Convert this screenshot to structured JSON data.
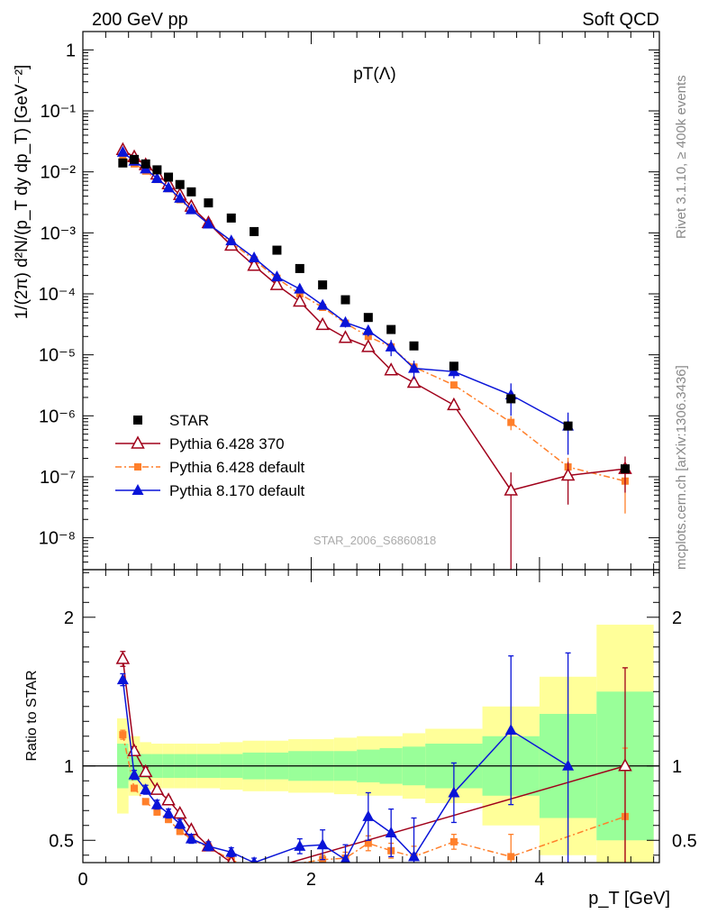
{
  "header": {
    "left": "200 GeV pp",
    "right": "Soft QCD",
    "side_top": "Rivet 3.1.10, ≥ 400k events",
    "side_bottom": "mcplots.cern.ch [arXiv:1306.3436]",
    "watermark": "STAR_2006_S6860818"
  },
  "colors": {
    "star": "#000000",
    "p6_370": "#a0001a",
    "p6_def": "#ff7f2a",
    "p8": "#0a14d8",
    "band_syst": "#ffff99",
    "band_stat": "#99ff99"
  },
  "chart_data": [
    {
      "type": "scatter",
      "title": "pT(Λ)",
      "xlabel": "p_T [GeV]",
      "ylabel": "1/(2π) d²N/(p_T dy dp_T) [GeV⁻²]",
      "x_range": [
        0,
        5.05
      ],
      "y_range": [
        3e-09,
        2
      ],
      "y_scale": "log",
      "y_ticks": [
        "10⁻⁸",
        "10⁻⁷",
        "10⁻⁶",
        "10⁻⁵",
        "10⁻⁴",
        "10⁻³",
        "10⁻²",
        "10⁻¹",
        "1"
      ],
      "legend_position": "bottom-left",
      "series": [
        {
          "name": "STAR",
          "marker": "filled-square",
          "x": [
            0.35,
            0.45,
            0.55,
            0.65,
            0.75,
            0.85,
            0.95,
            1.1,
            1.3,
            1.5,
            1.7,
            1.9,
            2.1,
            2.3,
            2.5,
            2.7,
            2.9,
            3.25,
            3.75,
            4.25,
            4.75
          ],
          "y": [
            0.014,
            0.016,
            0.0135,
            0.0108,
            0.0082,
            0.0062,
            0.0047,
            0.0031,
            0.00175,
            0.00105,
            0.00052,
            0.00026,
            0.00014,
            8e-05,
            4.1e-05,
            2.6e-05,
            1.4e-05,
            6.5e-06,
            1.9e-06,
            6.8e-07,
            1.35e-07
          ]
        },
        {
          "name": "Pythia 6.428 370",
          "marker": "open-triangle",
          "x": [
            0.35,
            0.45,
            0.55,
            0.65,
            0.75,
            0.85,
            0.95,
            1.1,
            1.3,
            1.5,
            1.7,
            1.9,
            2.1,
            2.3,
            2.5,
            2.7,
            2.9,
            3.25,
            3.75,
            4.25,
            4.75
          ],
          "y": [
            0.023,
            0.0175,
            0.013,
            0.0091,
            0.0063,
            0.0042,
            0.0027,
            0.00145,
            0.00062,
            0.00029,
            0.00014,
            7.5e-05,
            3.1e-05,
            1.9e-05,
            1.35e-05,
            5.6e-06,
            3.5e-06,
            1.5e-06,
            6e-08,
            1.05e-07,
            1.35e-07
          ],
          "yerr": [
            0,
            0,
            0,
            0,
            0,
            0,
            0,
            0,
            0,
            0,
            0,
            0,
            0,
            0,
            0,
            0,
            0,
            0,
            5.8e-08,
            7e-08,
            8e-08
          ]
        },
        {
          "name": "Pythia 6.428 default",
          "marker": "filled-small-square",
          "x": [
            0.35,
            0.45,
            0.55,
            0.65,
            0.75,
            0.85,
            0.95,
            1.1,
            1.3,
            1.5,
            1.7,
            1.9,
            2.1,
            2.3,
            2.5,
            2.7,
            2.9,
            3.25,
            3.75,
            4.25,
            4.75
          ],
          "y": [
            0.017,
            0.0135,
            0.0103,
            0.0075,
            0.0053,
            0.0035,
            0.0024,
            0.0014,
            0.0007,
            0.00036,
            0.00018,
            0.0001,
            6e-05,
            3.3e-05,
            2e-05,
            1.35e-05,
            6.3e-06,
            3.2e-06,
            7.8e-07,
            1.45e-07,
            8.5e-08
          ],
          "yerr": [
            0,
            0,
            0,
            0,
            0,
            0,
            0,
            0,
            0,
            0,
            0,
            0,
            0,
            0,
            0,
            0,
            0,
            3e-07,
            2e-07,
            6e-08,
            6e-08
          ]
        },
        {
          "name": "Pythia 8.170 default",
          "marker": "filled-triangle",
          "x": [
            0.35,
            0.45,
            0.55,
            0.65,
            0.75,
            0.85,
            0.95,
            1.1,
            1.3,
            1.5,
            1.7,
            1.9,
            2.1,
            2.3,
            2.5,
            2.7,
            2.9,
            3.25,
            3.75,
            4.25
          ],
          "y": [
            0.021,
            0.015,
            0.0112,
            0.0078,
            0.0055,
            0.0037,
            0.0024,
            0.0014,
            0.00074,
            0.00039,
            0.00019,
            0.00012,
            6.5e-05,
            3.4e-05,
            2.5e-05,
            1.35e-05,
            6e-06,
            5.3e-06,
            2.2e-06,
            6.8e-07
          ],
          "yerr": [
            0,
            0,
            0,
            0,
            0,
            0,
            0,
            0,
            0,
            0,
            0,
            0,
            8e-06,
            6e-06,
            5e-06,
            4e-06,
            2e-06,
            1.2e-06,
            1.2e-06,
            4.5e-07
          ]
        }
      ]
    },
    {
      "type": "scatter",
      "title": "",
      "xlabel": "p_T [GeV]",
      "ylabel": "Ratio to STAR",
      "x_range": [
        0,
        5.05
      ],
      "y_range": [
        0.35,
        2.32
      ],
      "x_ticks": [
        "0",
        "2",
        "4"
      ],
      "y_ticks": [
        "0.5",
        "1",
        "2"
      ],
      "reference_line": 1,
      "bands": {
        "x_edges": [
          0.3,
          0.4,
          0.5,
          0.6,
          0.7,
          0.8,
          0.9,
          1.0,
          1.2,
          1.4,
          1.6,
          1.8,
          2.0,
          2.2,
          2.4,
          2.6,
          2.8,
          3.0,
          3.5,
          4.0,
          4.5,
          5.0
        ],
        "syst_half": [
          0.32,
          0.2,
          0.16,
          0.15,
          0.15,
          0.15,
          0.15,
          0.15,
          0.16,
          0.17,
          0.17,
          0.18,
          0.18,
          0.19,
          0.2,
          0.2,
          0.22,
          0.25,
          0.4,
          0.6,
          0.95,
          1.2
        ],
        "stat_half": [
          0.15,
          0.1,
          0.08,
          0.08,
          0.08,
          0.08,
          0.08,
          0.08,
          0.08,
          0.09,
          0.09,
          0.1,
          0.1,
          0.1,
          0.11,
          0.12,
          0.13,
          0.15,
          0.2,
          0.35,
          0.5,
          0.7
        ]
      },
      "series": [
        {
          "name": "Pythia 6.428 370",
          "marker": "open-triangle",
          "x": [
            0.35,
            0.45,
            0.55,
            0.65,
            0.75,
            0.85,
            0.95,
            1.1,
            1.3,
            1.5,
            4.75
          ],
          "y": [
            1.72,
            1.1,
            0.96,
            0.84,
            0.77,
            0.68,
            0.57,
            0.46,
            0.35,
            0.28,
            1.0
          ],
          "yerr": [
            0.05,
            0.03,
            0.03,
            0.02,
            0.02,
            0.02,
            0.02,
            0.02,
            0.02,
            0.02,
            0.66
          ]
        },
        {
          "name": "Pythia 6.428 default",
          "marker": "filled-small-square",
          "x": [
            0.35,
            0.45,
            0.55,
            0.65,
            0.75,
            0.85,
            0.95,
            1.1,
            1.3,
            1.5,
            2.1,
            2.3,
            2.5,
            2.7,
            2.9,
            3.25,
            3.75,
            4.75
          ],
          "y": [
            1.21,
            0.85,
            0.76,
            0.69,
            0.64,
            0.56,
            0.51,
            0.45,
            0.37,
            0.3,
            0.37,
            0.38,
            0.48,
            0.43,
            0.39,
            0.49,
            0.39,
            0.66
          ],
          "yerr": [
            0.03,
            0.02,
            0.02,
            0.02,
            0.02,
            0.02,
            0.02,
            0.02,
            0.02,
            0.02,
            0.03,
            0.04,
            0.05,
            0.05,
            0.07,
            0.05,
            0.15,
            0.46
          ]
        },
        {
          "name": "Pythia 8.170 default",
          "marker": "filled-triangle",
          "x": [
            0.35,
            0.45,
            0.55,
            0.65,
            0.75,
            0.85,
            0.95,
            1.1,
            1.3,
            1.5,
            1.9,
            2.1,
            2.3,
            2.5,
            2.7,
            2.9,
            3.25,
            3.75,
            4.25
          ],
          "y": [
            1.58,
            0.94,
            0.84,
            0.74,
            0.68,
            0.61,
            0.51,
            0.46,
            0.42,
            0.35,
            0.46,
            0.47,
            0.37,
            0.66,
            0.55,
            0.39,
            0.82,
            1.24,
            1.0
          ],
          "yerr": [
            0.04,
            0.03,
            0.03,
            0.03,
            0.03,
            0.03,
            0.03,
            0.03,
            0.03,
            0.03,
            0.05,
            0.1,
            0.1,
            0.16,
            0.16,
            0.26,
            0.2,
            0.5,
            0.76
          ]
        }
      ]
    }
  ]
}
